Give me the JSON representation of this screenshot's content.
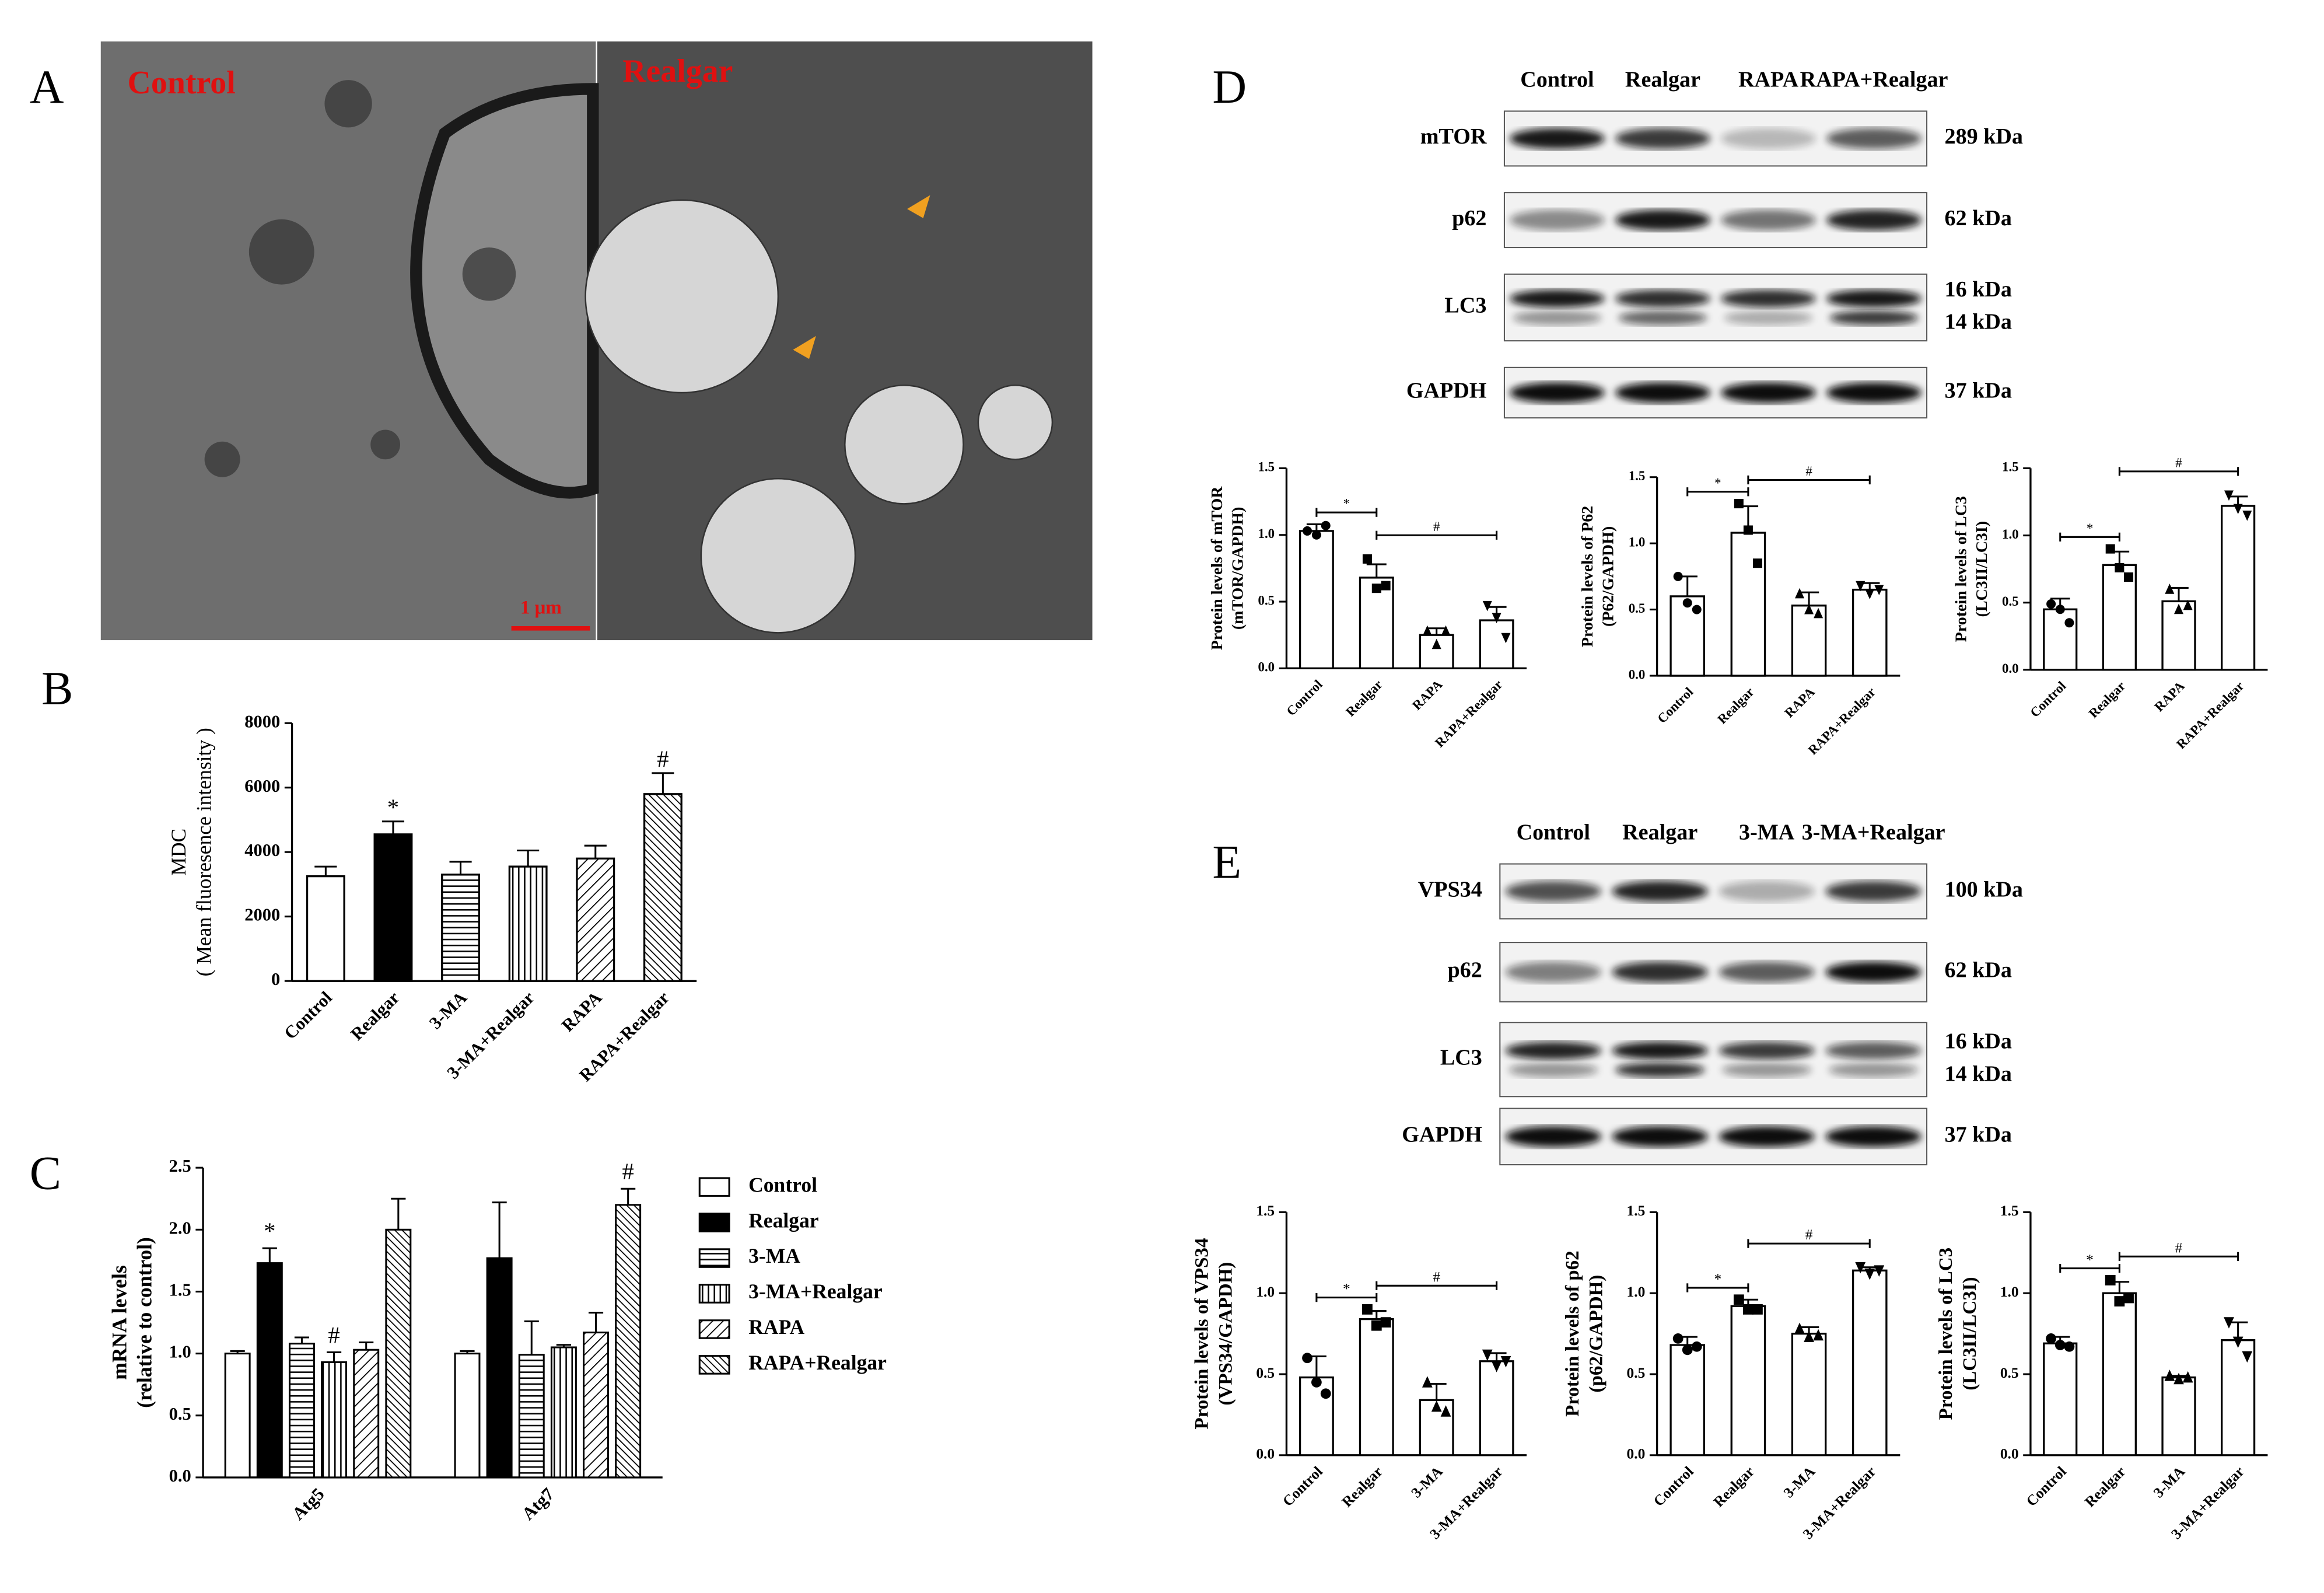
{
  "figure": {
    "panel_labels": [
      "A",
      "B",
      "C",
      "D",
      "E"
    ],
    "micrographs": [
      {
        "label": "Control"
      },
      {
        "label": "Realgar"
      }
    ],
    "scale_bar": "1 μm",
    "blots": [
      {
        "lanes": [
          "Control",
          "Realgar",
          "RAPA",
          "RAPA+Realgar"
        ],
        "rows": [
          {
            "label": "mTOR",
            "kda": [
              "289 kDa"
            ]
          },
          {
            "label": "p62",
            "kda": [
              "62 kDa"
            ]
          },
          {
            "label": "LC3",
            "kda": [
              "16 kDa",
              "14 kDa"
            ]
          },
          {
            "label": "GAPDH",
            "kda": [
              "37 kDa"
            ]
          }
        ]
      },
      {
        "lanes": [
          "Control",
          "Realgar",
          "3-MA",
          "3-MA+Realgar"
        ],
        "rows": [
          {
            "label": "VPS34",
            "kda": [
              "100 kDa"
            ]
          },
          {
            "label": "p62",
            "kda": [
              "62 kDa"
            ]
          },
          {
            "label": "LC3",
            "kda": [
              "16 kDa",
              "14 kDa"
            ]
          },
          {
            "label": "GAPDH",
            "kda": [
              "37 kDa"
            ]
          }
        ]
      }
    ]
  },
  "chart_data": [
    {
      "type": "bar",
      "ylabel": [
        "MDC",
        "( Mean fluoresence intensity )"
      ],
      "categories": [
        "Control",
        "Realgar",
        "3-MA",
        "3-MA+Realgar",
        "RAPA",
        "RAPA+Realgar"
      ],
      "values": [
        3250,
        4550,
        3300,
        3550,
        3800,
        5800
      ],
      "errors": [
        300,
        400,
        400,
        500,
        400,
        650
      ],
      "fills": [
        "white",
        "black",
        "horizontal",
        "vertical",
        "diagonal",
        "crosshatch"
      ],
      "ylim": [
        0,
        8000
      ],
      "yticks": [
        0,
        2000,
        4000,
        6000,
        8000
      ],
      "annotations": [
        {
          "category": "Realgar",
          "text": "*"
        },
        {
          "category": "RAPA+Realgar",
          "text": "#"
        }
      ]
    },
    {
      "type": "grouped_bar",
      "ylabel": [
        "mRNA levels",
        "(relative to control)"
      ],
      "categories": [
        "Atg5",
        "Atg7"
      ],
      "series": [
        {
          "name": "Control",
          "fill": "white",
          "values": [
            1.0,
            1.0
          ],
          "errors": [
            0.02,
            0.02
          ]
        },
        {
          "name": "Realgar",
          "fill": "black",
          "values": [
            1.73,
            1.77
          ],
          "errors": [
            0.12,
            0.45
          ]
        },
        {
          "name": "3-MA",
          "fill": "horizontal",
          "values": [
            1.08,
            0.99
          ],
          "errors": [
            0.05,
            0.27
          ]
        },
        {
          "name": "3-MA+Realgar",
          "fill": "vertical",
          "values": [
            0.93,
            1.05
          ],
          "errors": [
            0.08,
            0.02
          ]
        },
        {
          "name": "RAPA",
          "fill": "diagonal",
          "values": [
            1.03,
            1.17
          ],
          "errors": [
            0.06,
            0.16
          ]
        },
        {
          "name": "RAPA+Realgar",
          "fill": "crosshatch",
          "values": [
            2.0,
            2.2
          ],
          "errors": [
            0.25,
            0.13
          ]
        }
      ],
      "ylim": [
        0,
        2.5
      ],
      "yticks": [
        {
          "value": 0,
          "label": "0.0"
        },
        0.5,
        {
          "value": 1,
          "label": "1.0"
        },
        1.5,
        {
          "value": 2,
          "label": "2.0"
        },
        2.5
      ],
      "annotations": [
        {
          "series": "Realgar",
          "category": "Atg5",
          "text": "*"
        },
        {
          "series": "3-MA+Realgar",
          "category": "Atg5",
          "text": "#"
        },
        {
          "series": "RAPA+Realgar",
          "category": "Atg7",
          "text": "#"
        }
      ]
    },
    {
      "type": "bar",
      "ylabel": [
        "Protein levels of mTOR",
        "(mTOR/GAPDH)"
      ],
      "categories": [
        "Control",
        "Realgar",
        "RAPA",
        "RAPA+Realgar"
      ],
      "values": [
        1.03,
        0.68,
        0.25,
        0.36
      ],
      "errors": [
        0.05,
        0.1,
        0.05,
        0.1
      ],
      "points": [
        [
          1.03,
          1.0,
          1.07
        ],
        [
          0.82,
          0.6,
          0.62
        ],
        [
          0.28,
          0.18,
          0.28
        ],
        [
          0.47,
          0.38,
          0.23
        ]
      ],
      "fills": [
        "white",
        "white",
        "white",
        "white"
      ],
      "markers": [
        "circle",
        "square",
        "triangle",
        "triangle-down"
      ],
      "ylim": [
        0,
        1.5
      ],
      "yticks": [
        {
          "value": 0,
          "label": "0.0"
        },
        0.5,
        {
          "value": 1,
          "label": "1.0"
        },
        1.5
      ],
      "brackets": [
        {
          "from": "Control",
          "to": "Realgar",
          "text": "*"
        },
        {
          "from": "Realgar",
          "to": "RAPA+Realgar",
          "text": "#"
        }
      ]
    },
    {
      "type": "bar",
      "ylabel": [
        "Protein levels of P62",
        "(P62/GAPDH)"
      ],
      "categories": [
        "Control",
        "Realgar",
        "RAPA",
        "RAPA+Realgar"
      ],
      "values": [
        0.6,
        1.08,
        0.53,
        0.65
      ],
      "errors": [
        0.15,
        0.2,
        0.1,
        0.05
      ],
      "points": [
        [
          0.75,
          0.55,
          0.5
        ],
        [
          1.3,
          1.1,
          0.85
        ],
        [
          0.62,
          0.5,
          0.47
        ],
        [
          0.68,
          0.62,
          0.65
        ]
      ],
      "fills": [
        "white",
        "white",
        "white",
        "white"
      ],
      "markers": [
        "circle",
        "square",
        "triangle",
        "triangle-down"
      ],
      "ylim": [
        0,
        1.5
      ],
      "yticks": [
        {
          "value": 0,
          "label": "0.0"
        },
        0.5,
        {
          "value": 1,
          "label": "1.0"
        },
        1.5
      ],
      "brackets": [
        {
          "from": "Control",
          "to": "Realgar",
          "text": "*"
        },
        {
          "from": "Realgar",
          "to": "RAPA+Realgar",
          "text": "#"
        }
      ]
    },
    {
      "type": "bar",
      "ylabel": [
        "Protein levels of LC3",
        "(LC3II/LC3I)"
      ],
      "categories": [
        "Control",
        "Realgar",
        "RAPA",
        "RAPA+Realgar"
      ],
      "values": [
        0.45,
        0.78,
        0.51,
        1.22
      ],
      "errors": [
        0.08,
        0.1,
        0.1,
        0.07
      ],
      "points": [
        [
          0.49,
          0.45,
          0.35
        ],
        [
          0.9,
          0.76,
          0.69
        ],
        [
          0.6,
          0.45,
          0.48
        ],
        [
          1.3,
          1.2,
          1.15
        ]
      ],
      "fills": [
        "white",
        "white",
        "white",
        "white"
      ],
      "markers": [
        "circle",
        "square",
        "triangle",
        "triangle-down"
      ],
      "ylim": [
        0,
        1.5
      ],
      "yticks": [
        {
          "value": 0,
          "label": "0.0"
        },
        0.5,
        {
          "value": 1,
          "label": "1.0"
        },
        1.5
      ],
      "brackets": [
        {
          "from": "Control",
          "to": "Realgar",
          "text": "*"
        },
        {
          "from": "Realgar",
          "to": "RAPA+Realgar",
          "text": "#"
        }
      ]
    },
    {
      "type": "bar",
      "ylabel": [
        "Protein levels of VPS34",
        "(VPS34/GAPDH)"
      ],
      "categories": [
        "Control",
        "Realgar",
        "3-MA",
        "3-MA+Realgar"
      ],
      "values": [
        0.48,
        0.84,
        0.34,
        0.58
      ],
      "errors": [
        0.13,
        0.05,
        0.1,
        0.05
      ],
      "points": [
        [
          0.6,
          0.45,
          0.38
        ],
        [
          0.9,
          0.8,
          0.82
        ],
        [
          0.45,
          0.3,
          0.27
        ],
        [
          0.62,
          0.55,
          0.58
        ]
      ],
      "fills": [
        "white",
        "white",
        "white",
        "white"
      ],
      "markers": [
        "circle",
        "square",
        "triangle",
        "triangle-down"
      ],
      "ylim": [
        0,
        1.5
      ],
      "yticks": [
        {
          "value": 0,
          "label": "0.0"
        },
        0.5,
        {
          "value": 1,
          "label": "1.0"
        },
        1.5
      ],
      "brackets": [
        {
          "from": "Control",
          "to": "Realgar",
          "text": "*"
        },
        {
          "from": "Realgar",
          "to": "3-MA+Realgar",
          "text": "#"
        }
      ]
    },
    {
      "type": "bar",
      "ylabel": [
        "Protein levels of p62",
        "(p62/GAPDH)"
      ],
      "categories": [
        "Control",
        "Realgar",
        "3-MA",
        "3-MA+Realgar"
      ],
      "values": [
        0.68,
        0.92,
        0.75,
        1.14
      ],
      "errors": [
        0.05,
        0.04,
        0.04,
        0.02
      ],
      "points": [
        [
          0.72,
          0.65,
          0.67
        ],
        [
          0.96,
          0.9,
          0.9
        ],
        [
          0.78,
          0.73,
          0.74
        ],
        [
          1.16,
          1.12,
          1.14
        ]
      ],
      "fills": [
        "white",
        "white",
        "white",
        "white"
      ],
      "markers": [
        "circle",
        "square",
        "triangle",
        "triangle-down"
      ],
      "ylim": [
        0,
        1.5
      ],
      "yticks": [
        {
          "value": 0,
          "label": "0.0"
        },
        0.5,
        {
          "value": 1,
          "label": "1.0"
        },
        1.5
      ],
      "brackets": [
        {
          "from": "Control",
          "to": "Realgar",
          "text": "*"
        },
        {
          "from": "Realgar",
          "to": "3-MA+Realgar",
          "text": "#"
        }
      ]
    },
    {
      "type": "bar",
      "ylabel": [
        "Protein levels of LC3",
        "(LC3II/LC3I)"
      ],
      "categories": [
        "Control",
        "Realgar",
        "3-MA",
        "3-MA+Realgar"
      ],
      "values": [
        0.69,
        1.0,
        0.48,
        0.71
      ],
      "errors": [
        0.04,
        0.07,
        0.01,
        0.11
      ],
      "points": [
        [
          0.72,
          0.68,
          0.67
        ],
        [
          1.08,
          0.95,
          0.97
        ],
        [
          0.49,
          0.47,
          0.48
        ],
        [
          0.82,
          0.7,
          0.61
        ]
      ],
      "fills": [
        "white",
        "white",
        "white",
        "white"
      ],
      "markers": [
        "circle",
        "square",
        "triangle",
        "triangle-down"
      ],
      "ylim": [
        0,
        1.5
      ],
      "yticks": [
        {
          "value": 0,
          "label": "0.0"
        },
        0.5,
        {
          "value": 1,
          "label": "1.0"
        },
        1.5
      ],
      "brackets": [
        {
          "from": "Control",
          "to": "Realgar",
          "text": "*"
        },
        {
          "from": "Realgar",
          "to": "3-MA+Realgar",
          "text": "#"
        }
      ]
    }
  ]
}
